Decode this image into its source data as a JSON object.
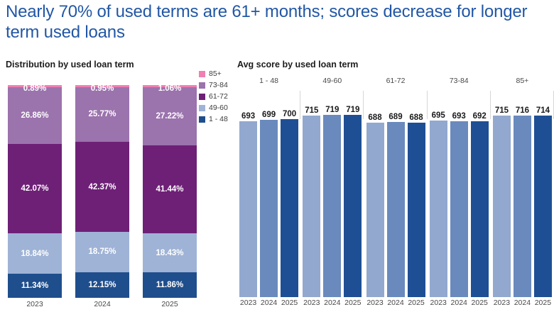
{
  "page": {
    "title_lines": [
      "Nearly 70% of used terms are 61+ months; scores decrease for longer",
      "term used loans"
    ]
  },
  "colors": {
    "title_blue": "#2257A5",
    "axis_text": "#484848",
    "divider_gray": "#d6d6d6"
  },
  "chart_data": [
    {
      "type": "bar",
      "subtype": "stacked_100pct",
      "title": "Distribution by used loan term",
      "categories": [
        "2023",
        "2024",
        "2025"
      ],
      "series": [
        {
          "name": "85+",
          "key": "85plus",
          "color": "#F07FB2",
          "values": [
            0.89,
            0.95,
            1.06
          ]
        },
        {
          "name": "73-84",
          "key": "73-84",
          "color": "#9B73AD",
          "values": [
            26.86,
            25.77,
            27.22
          ]
        },
        {
          "name": "61-72",
          "key": "61-72",
          "color": "#6E2077",
          "values": [
            42.07,
            42.37,
            41.44
          ]
        },
        {
          "name": "49-60",
          "key": "49-60",
          "color": "#9FB3D6",
          "values": [
            18.84,
            18.75,
            18.43
          ]
        },
        {
          "name": "1 - 48",
          "key": "1-48",
          "color": "#1F4E8C",
          "values": [
            11.34,
            12.15,
            11.86
          ]
        }
      ],
      "label_format": "0.00%",
      "legend_position": "right",
      "ylim": [
        0,
        100
      ]
    },
    {
      "type": "bar",
      "subtype": "grouped",
      "title": "Avg score by used loan term",
      "categories": [
        "2023",
        "2024",
        "2025"
      ],
      "year_colors": {
        "2023": "#92A8CE",
        "2024": "#6A8ABD",
        "2025": "#1E4F94"
      },
      "groups": [
        {
          "name": "1 - 48",
          "key": "1-48",
          "values": [
            693,
            699,
            700
          ]
        },
        {
          "name": "49-60",
          "key": "49-60",
          "values": [
            715,
            719,
            719
          ]
        },
        {
          "name": "61-72",
          "key": "61-72",
          "values": [
            688,
            689,
            688
          ]
        },
        {
          "name": "73-84",
          "key": "73-84",
          "values": [
            695,
            693,
            692
          ]
        },
        {
          "name": "85+",
          "key": "85plus",
          "values": [
            715,
            716,
            714
          ]
        }
      ],
      "value_labels": true,
      "ylim": [
        0,
        719
      ]
    }
  ]
}
